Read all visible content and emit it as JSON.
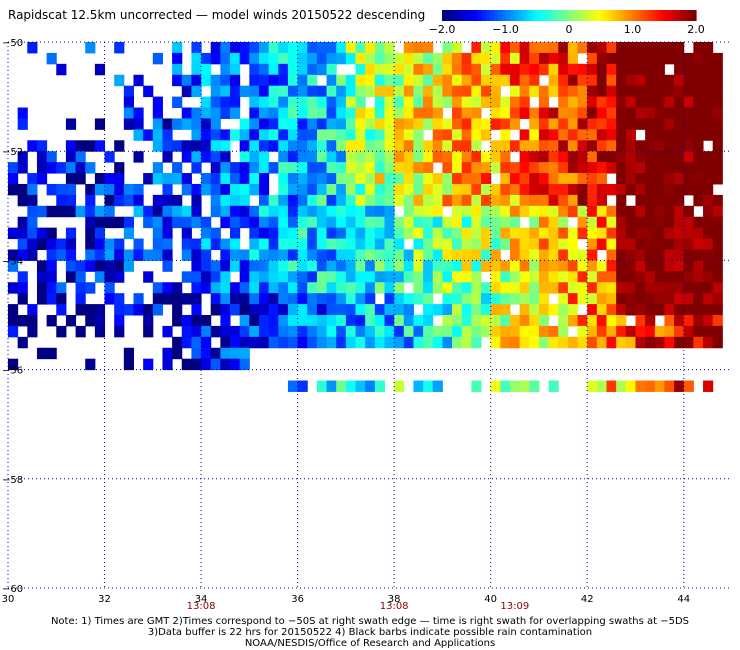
{
  "title": "Rapidscat 12.5km uncorrected — model winds 20150522 descending",
  "colorbar": {
    "min": -2.0,
    "max": 2.0,
    "tick_labels": [
      "−2.0",
      "−1.0",
      "0",
      "1.0",
      "2.0"
    ],
    "tick_values": [
      -2.0,
      -1.0,
      0,
      1.0,
      2.0
    ],
    "colormap": "jet",
    "colors": [
      "#00008f",
      "#0000ff",
      "#00ffff",
      "#ffff00",
      "#ff0000",
      "#800000"
    ]
  },
  "chart_data": {
    "type": "heatmap",
    "xlim": [
      30,
      45
    ],
    "ylim": [
      -60,
      -50
    ],
    "x_ticks": [
      30,
      32,
      34,
      36,
      38,
      40,
      42,
      44
    ],
    "x_tick_labels": [
      "30",
      "32",
      "34",
      "36",
      "38",
      "40",
      "42",
      "44"
    ],
    "y_ticks": [
      -50,
      -52,
      -54,
      -56,
      -58,
      -60
    ],
    "y_tick_labels": [
      "−50",
      "−52",
      "−54",
      "−56",
      "−58",
      "−60"
    ],
    "grid": true,
    "grid_style": "dotted",
    "time_labels": [
      {
        "x": 34,
        "text": "13:08"
      },
      {
        "x": 38,
        "text": "13:08"
      },
      {
        "x": 40.5,
        "text": "13:09"
      }
    ],
    "value_description": "wind speed difference, scatterometer minus model",
    "value_range": [
      -2.0,
      2.0
    ],
    "cell_size_deg": [
      0.2,
      0.2
    ],
    "swath": {
      "lon_range": [
        30,
        44.8
      ],
      "lat_range": [
        -56.0,
        -50.0
      ]
    }
  },
  "footer": {
    "line1": "Note: 1) Times are GMT 2)Times correspond to −50S at right swath edge — time is right swath for overlapping swaths at −5DS",
    "line2": "3)Data buffer is 22 hrs for 20150522 4) Black barbs indicate possible rain contamination",
    "line3": "NOAA/NESDIS/Office of Research and Applications"
  }
}
